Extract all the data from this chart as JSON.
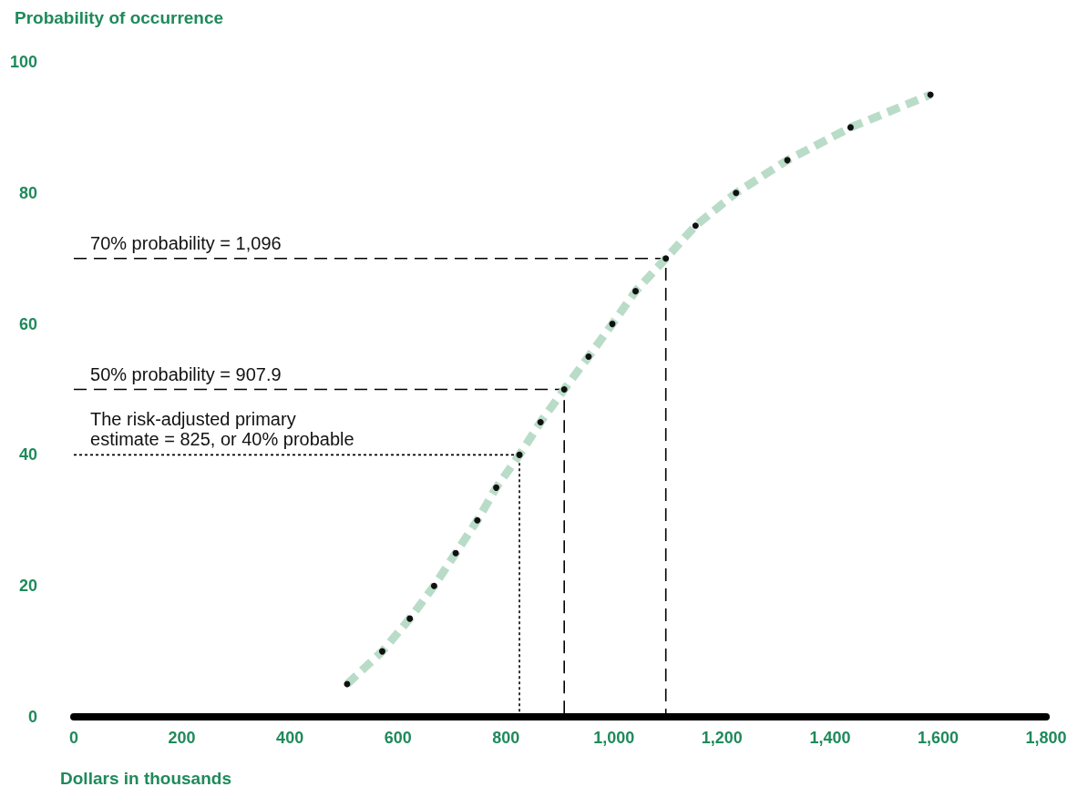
{
  "chart_data": {
    "type": "line",
    "xlabel": "Dollars in thousands",
    "ylabel": "Probability of occurrence",
    "xlim": [
      0,
      1800
    ],
    "ylim": [
      0,
      100
    ],
    "xticks": [
      0,
      200,
      400,
      600,
      800,
      {
        "value": 1000,
        "label": "1,000"
      },
      {
        "value": 1200,
        "label": "1,200"
      },
      {
        "value": 1400,
        "label": "1,400"
      },
      {
        "value": 1600,
        "label": "1,600"
      },
      {
        "value": 1800,
        "label": "1,800"
      }
    ],
    "yticks": [
      0,
      20,
      40,
      60,
      80,
      100
    ],
    "series": [
      {
        "color": "#b9dcc8",
        "marker": "circle",
        "line_style": "dashed",
        "x": [
          506,
          571,
          622,
          667,
          707,
          747,
          782,
          825,
          864,
          907.9,
          953,
          997,
          1040,
          1096,
          1151,
          1226,
          1321,
          1438,
          1586
        ],
        "values": [
          5,
          10,
          15,
          20,
          25,
          30,
          35,
          40,
          45,
          50,
          55,
          60,
          65,
          70,
          75,
          80,
          85,
          90,
          95
        ]
      },
      {
        "color": "#000000",
        "marker": "none",
        "line_style": "dashed",
        "x": [
          0,
          1096,
          1096
        ],
        "values": [
          70,
          70,
          0
        ]
      },
      {
        "color": "#000000",
        "marker": "none",
        "line_style": "dashed",
        "x": [
          0,
          907.9,
          907.9
        ],
        "values": [
          50,
          50,
          0
        ]
      },
      {
        "color": "#000000",
        "marker": "none",
        "line_style": "dotted",
        "x": [
          0,
          825,
          825
        ],
        "values": [
          40,
          40,
          0
        ]
      }
    ],
    "annotations": [
      "70% probability = 1,096",
      "50% probability = 907.9",
      "The risk-adjusted primary\nestimate = 825, or 40% probable"
    ]
  }
}
